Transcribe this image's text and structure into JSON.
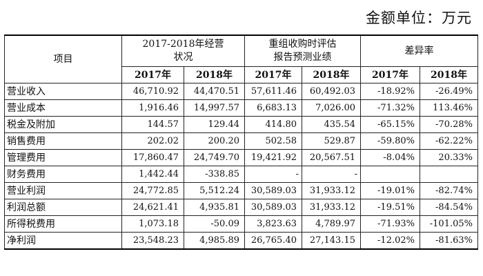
{
  "unit_label": "金额单位：万元",
  "header": {
    "item": "项目",
    "group1": "2017-2018年经营状况",
    "group2": "重组收购时评估报告预测业绩",
    "group3": "差异率",
    "years": [
      "2017年",
      "2018年",
      "2017年",
      "2018年",
      "2017年",
      "2018年"
    ]
  },
  "rows": [
    {
      "label": "营业收入",
      "values": [
        "46,710.92",
        "44,470.51",
        "57,611.46",
        "60,492.03",
        "-18.92%",
        "-26.49%"
      ]
    },
    {
      "label": "营业成本",
      "values": [
        "1,916.46",
        "14,997.57",
        "6,683.13",
        "7,026.00",
        "-71.32%",
        "113.46%"
      ]
    },
    {
      "label": "税金及附加",
      "values": [
        "144.57",
        "129.44",
        "414.80",
        "435.54",
        "-65.15%",
        "-70.28%"
      ]
    },
    {
      "label": "销售费用",
      "values": [
        "202.02",
        "200.20",
        "502.58",
        "529.87",
        "-59.80%",
        "-62.22%"
      ]
    },
    {
      "label": "管理费用",
      "values": [
        "17,860.47",
        "24,749.70",
        "19,421.92",
        "20,567.51",
        "-8.04%",
        "20.33%"
      ]
    },
    {
      "label": "财务费用",
      "values": [
        "1,442.44",
        "-338.85",
        "-",
        "-",
        "",
        ""
      ]
    },
    {
      "label": "营业利润",
      "values": [
        "24,772.85",
        "5,512.24",
        "30,589.03",
        "31,933.12",
        "-19.01%",
        "-82.74%"
      ]
    },
    {
      "label": "利润总额",
      "values": [
        "24,621.41",
        "4,935.81",
        "30,589.03",
        "31,933.12",
        "-19.51%",
        "-84.54%"
      ]
    },
    {
      "label": "所得税费用",
      "values": [
        "1,073.18",
        "-50.09",
        "3,823.63",
        "4,789.97",
        "-71.93%",
        "-101.05%"
      ]
    },
    {
      "label": "净利润",
      "values": [
        "23,548.23",
        "4,985.89",
        "26,765.40",
        "27,143.15",
        "-12.02%",
        "-81.63%"
      ]
    }
  ]
}
